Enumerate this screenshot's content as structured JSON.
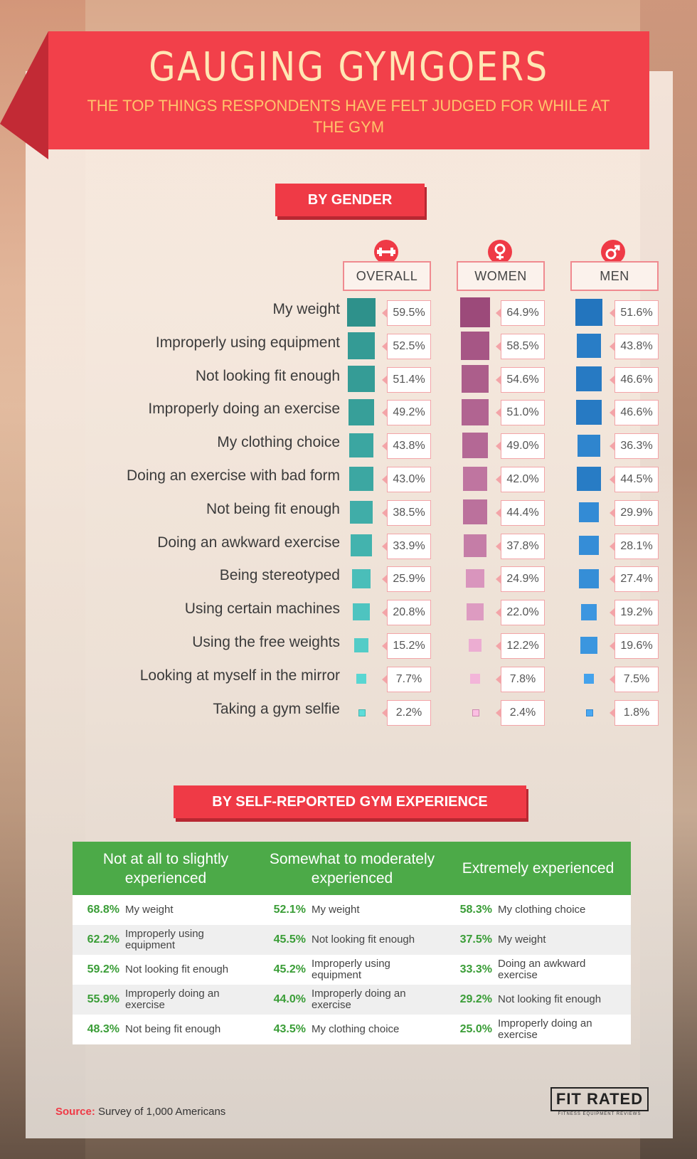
{
  "header": {
    "title": "GAUGING GYMGOERS",
    "subtitle": "THE TOP THINGS RESPONDENTS HAVE FELT JUDGED FOR WHILE AT THE GYM"
  },
  "sections": {
    "gender": "BY GENDER",
    "experience": "BY SELF-REPORTED GYM EXPERIENCE"
  },
  "icons": {
    "overall": "dumbbell-icon",
    "women": "female-symbol-icon",
    "men": "male-symbol-icon"
  },
  "colors": {
    "accent": "#ef3a46",
    "overall": "#2a9a92",
    "women": "#c95a93",
    "men": "#1e7fd6",
    "green": "#4caa48"
  },
  "chart_data": {
    "type": "table",
    "title": "GAUGING GYMGOERS",
    "subtitle": "THE TOP THINGS RESPONDENTS HAVE FELT JUDGED FOR WHILE AT THE GYM",
    "section": "BY GENDER",
    "categories": [
      "My weight",
      "Improperly using equipment",
      "Not looking fit enough",
      "Improperly doing an exercise",
      "My clothing choice",
      "Doing an exercise with bad form",
      "Not being fit enough",
      "Doing an awkward exercise",
      "Being stereotyped",
      "Using certain machines",
      "Using the free weights",
      "Looking at myself in the mirror",
      "Taking a gym selfie"
    ],
    "series": [
      {
        "name": "OVERALL",
        "values": [
          59.5,
          52.5,
          51.4,
          49.2,
          43.8,
          43.0,
          38.5,
          33.9,
          25.9,
          20.8,
          15.2,
          7.7,
          2.2
        ],
        "labels": [
          "59.5%",
          "52.5%",
          "51.4%",
          "49.2%",
          "43.8%",
          "43.0%",
          "38.5%",
          "33.9%",
          "25.9%",
          "20.8%",
          "15.2%",
          "7.7%",
          "2.2%"
        ]
      },
      {
        "name": "WOMEN",
        "values": [
          64.9,
          58.5,
          54.6,
          51.0,
          49.0,
          42.0,
          44.4,
          37.8,
          24.9,
          22.0,
          12.2,
          7.8,
          2.4
        ],
        "labels": [
          "64.9%",
          "58.5%",
          "54.6%",
          "51.0%",
          "49.0%",
          "42.0%",
          "44.4%",
          "37.8%",
          "24.9%",
          "22.0%",
          "12.2%",
          "7.8%",
          "2.4%"
        ]
      },
      {
        "name": "MEN",
        "values": [
          51.6,
          43.8,
          46.6,
          46.6,
          36.3,
          44.5,
          29.9,
          28.1,
          27.4,
          19.2,
          19.6,
          7.5,
          1.8
        ],
        "labels": [
          "51.6%",
          "43.8%",
          "46.6%",
          "46.6%",
          "36.3%",
          "44.5%",
          "29.9%",
          "28.1%",
          "27.4%",
          "19.2%",
          "19.6%",
          "7.5%",
          "1.8%"
        ]
      }
    ]
  },
  "experience_table": {
    "columns": [
      {
        "header": "Not at all to slightly experienced",
        "rows": [
          {
            "pct": "68.8%",
            "label": "My weight"
          },
          {
            "pct": "62.2%",
            "label": "Improperly using equipment"
          },
          {
            "pct": "59.2%",
            "label": "Not looking fit enough"
          },
          {
            "pct": "55.9%",
            "label": "Improperly doing an exercise"
          },
          {
            "pct": "48.3%",
            "label": "Not being fit enough"
          }
        ]
      },
      {
        "header": "Somewhat to moderately experienced",
        "rows": [
          {
            "pct": "52.1%",
            "label": "My weight"
          },
          {
            "pct": "45.5%",
            "label": "Not looking fit enough"
          },
          {
            "pct": "45.2%",
            "label": "Improperly using equipment"
          },
          {
            "pct": "44.0%",
            "label": "Improperly doing an exercise"
          },
          {
            "pct": "43.5%",
            "label": "My clothing choice"
          }
        ]
      },
      {
        "header": "Extremely experienced",
        "rows": [
          {
            "pct": "58.3%",
            "label": "My clothing choice"
          },
          {
            "pct": "37.5%",
            "label": "My weight"
          },
          {
            "pct": "33.3%",
            "label": "Doing an awkward exercise"
          },
          {
            "pct": "29.2%",
            "label": "Not looking fit enough"
          },
          {
            "pct": "25.0%",
            "label": "Improperly doing an exercise"
          }
        ]
      }
    ]
  },
  "footer": {
    "source_label": "Source:",
    "source_text": "Survey of 1,000 Americans",
    "logo": "FIT RATED",
    "logo_tagline": "FITNESS EQUIPMENT REVIEWS"
  }
}
